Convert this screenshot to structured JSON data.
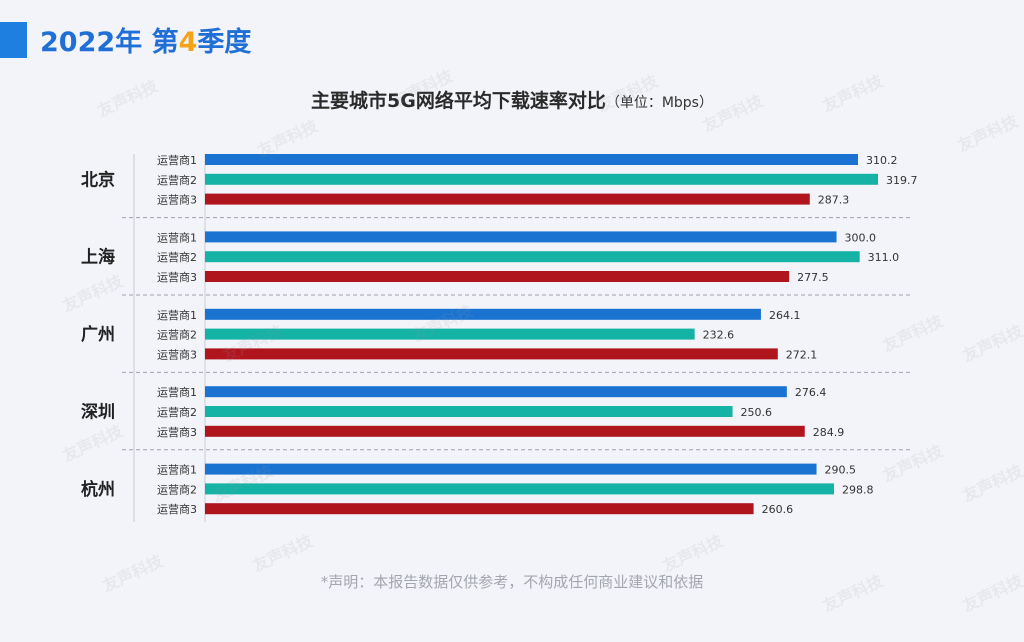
{
  "header": {
    "year": "2022年",
    "quarter_prefix": "第",
    "quarter_num": "4",
    "quarter_suffix": "季度"
  },
  "chart_title": {
    "main": "主要城市5G网络平均下载速率对比",
    "unit": "（单位：Mbps）"
  },
  "footnote": "*声明：本报告数据仅供参考，不构成任何商业建议和依据",
  "watermark": "友声科技",
  "colors": {
    "operator1": "#1a73d1",
    "operator2": "#14b3a5",
    "operator3": "#b0141c",
    "accent": "#1e7fe0",
    "quarter_num": "#f5a317"
  },
  "chart_data": {
    "type": "bar",
    "orientation": "horizontal",
    "title": "主要城市5G网络平均下载速率对比",
    "unit": "（单位：Mbps）",
    "groups": [
      "北京",
      "上海",
      "广州",
      "深圳",
      "杭州"
    ],
    "series": [
      {
        "name": "运营商1",
        "color": "#1a73d1",
        "values": [
          310.2,
          300.0,
          264.1,
          276.4,
          290.5
        ]
      },
      {
        "name": "运营商2",
        "color": "#14b3a5",
        "values": [
          319.7,
          311.0,
          232.6,
          250.6,
          298.8
        ]
      },
      {
        "name": "运营商3",
        "color": "#b0141c",
        "values": [
          287.3,
          277.5,
          272.1,
          284.9,
          260.6
        ]
      }
    ],
    "value_labels": [
      [
        "310.2",
        "300.0",
        "264.1",
        "276.4",
        "290.5"
      ],
      [
        "319.7",
        "311.0",
        "232.6",
        "250.6",
        "298.8"
      ],
      [
        "287.3",
        "277.5",
        "272.1",
        "284.9",
        "260.6"
      ]
    ],
    "xlim": [
      0,
      320
    ],
    "grid": false,
    "legend": "none"
  }
}
